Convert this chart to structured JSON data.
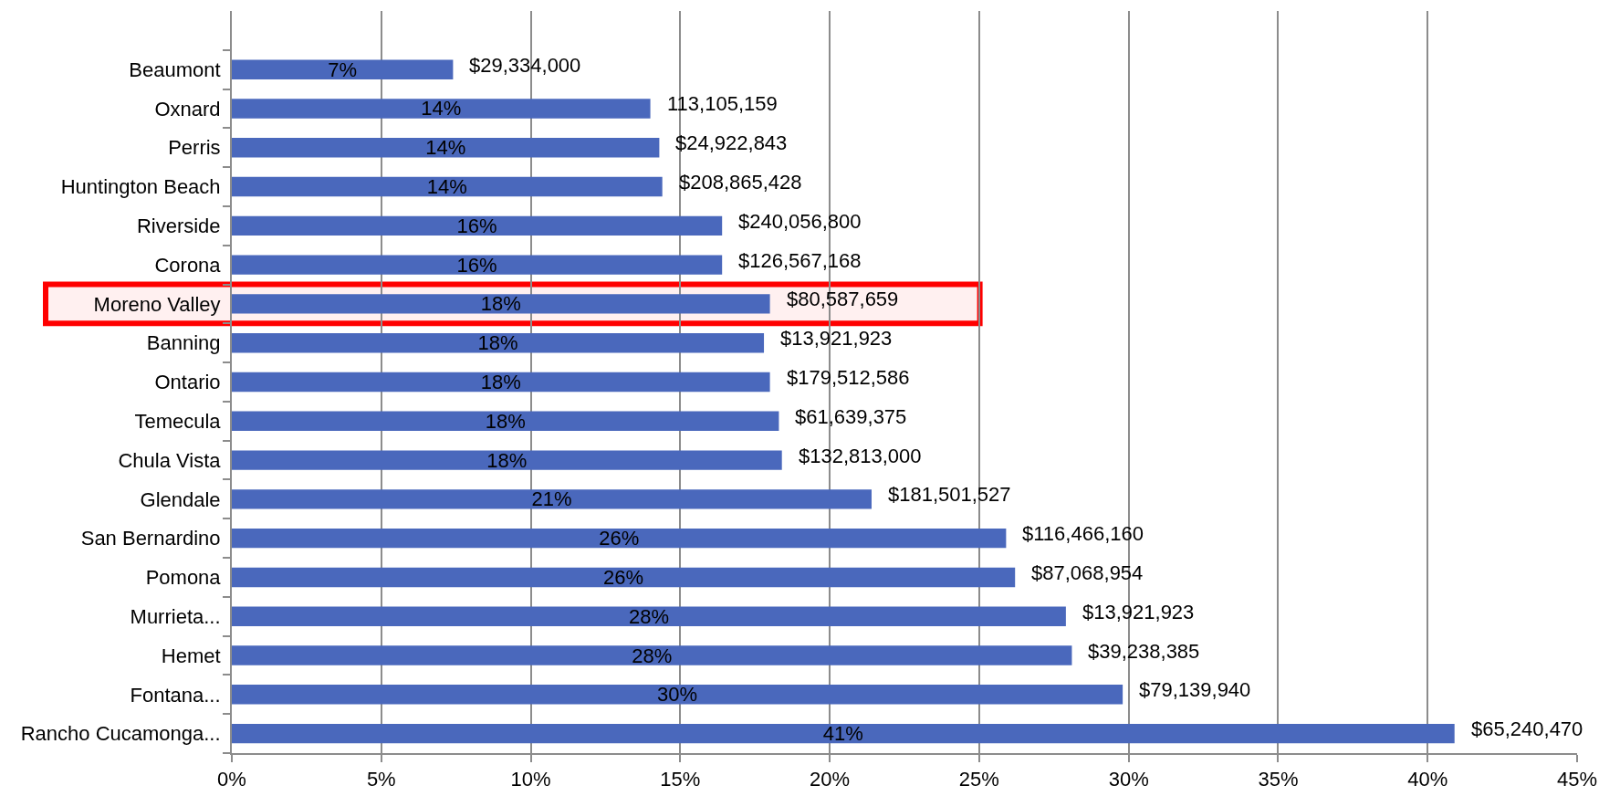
{
  "chart_data": {
    "type": "bar",
    "orientation": "horizontal",
    "categories": [
      "Beaumont",
      "Oxnard",
      "Perris",
      "Huntington Beach",
      "Riverside",
      "Corona",
      "Moreno Valley",
      "Banning",
      "Ontario",
      "Temecula",
      "Chula Vista",
      "Glendale",
      "San Bernardino",
      "Pomona",
      "Murrieta...",
      "Hemet",
      "Fontana...",
      "Rancho Cucamonga..."
    ],
    "values": [
      7.4,
      14.0,
      14.3,
      14.4,
      16.4,
      16.4,
      18.0,
      17.8,
      18.0,
      18.3,
      18.4,
      21.4,
      25.9,
      26.2,
      27.9,
      28.1,
      29.8,
      40.9
    ],
    "value_labels": [
      "7%",
      "14%",
      "14%",
      "14%",
      "16%",
      "16%",
      "18%",
      "18%",
      "18%",
      "18%",
      "18%",
      "21%",
      "26%",
      "26%",
      "28%",
      "28%",
      "30%",
      "41%"
    ],
    "color": "#4a68bc",
    "xlim": [
      0,
      45
    ],
    "xticks": [
      {
        "value": 0,
        "label": "0%"
      },
      {
        "value": 5,
        "label": "5%"
      },
      {
        "value": 10,
        "label": "10%"
      },
      {
        "value": 15,
        "label": "15%"
      },
      {
        "value": 20,
        "label": "20%"
      },
      {
        "value": 25,
        "label": "25%"
      },
      {
        "value": 30,
        "label": "30%"
      },
      {
        "value": 35,
        "label": "35%"
      },
      {
        "value": 40,
        "label": "40%"
      },
      {
        "value": 45,
        "label": "45%"
      }
    ],
    "grid": "x",
    "annotations": [
      {
        "text": "$29,334,000",
        "x": 7.4,
        "y": "Beaumont"
      },
      {
        "text": "113,105,159",
        "x": 14.0,
        "y": "Oxnard"
      },
      {
        "text": "$24,922,843",
        "x": 14.3,
        "y": "Perris"
      },
      {
        "text": "$208,865,428",
        "x": 14.4,
        "y": "Huntington Beach"
      },
      {
        "text": "$240,056,800",
        "x": 16.4,
        "y": "Riverside"
      },
      {
        "text": "$126,567,168",
        "x": 16.4,
        "y": "Corona"
      },
      {
        "text": "$80,587,659",
        "x": 18.0,
        "y": "Moreno Valley"
      },
      {
        "text": "$13,921,923",
        "x": 17.8,
        "y": "Banning"
      },
      {
        "text": "$179,512,586",
        "x": 18.0,
        "y": "Ontario"
      },
      {
        "text": "$61,639,375",
        "x": 18.3,
        "y": "Temecula"
      },
      {
        "text": "$132,813,000",
        "x": 18.4,
        "y": "Chula Vista"
      },
      {
        "text": "$181,501,527",
        "x": 21.4,
        "y": "Glendale"
      },
      {
        "text": "$116,466,160",
        "x": 25.9,
        "y": "San Bernardino"
      },
      {
        "text": "$87,068,954",
        "x": 26.2,
        "y": "Pomona"
      },
      {
        "text": "$13,921,923",
        "x": 27.9,
        "y": "Murrieta..."
      },
      {
        "text": "$39,238,385",
        "x": 28.1,
        "y": "Hemet"
      },
      {
        "text": "$79,139,940",
        "x": 29.8,
        "y": "Fontana..."
      },
      {
        "text": "$65,240,470",
        "x": 40.9,
        "y": "Rancho Cucamonga..."
      }
    ],
    "bands": [
      {
        "axis": "y",
        "from": "Moreno Valley",
        "to": "Moreno Valley",
        "color": "#ff0000"
      }
    ]
  }
}
